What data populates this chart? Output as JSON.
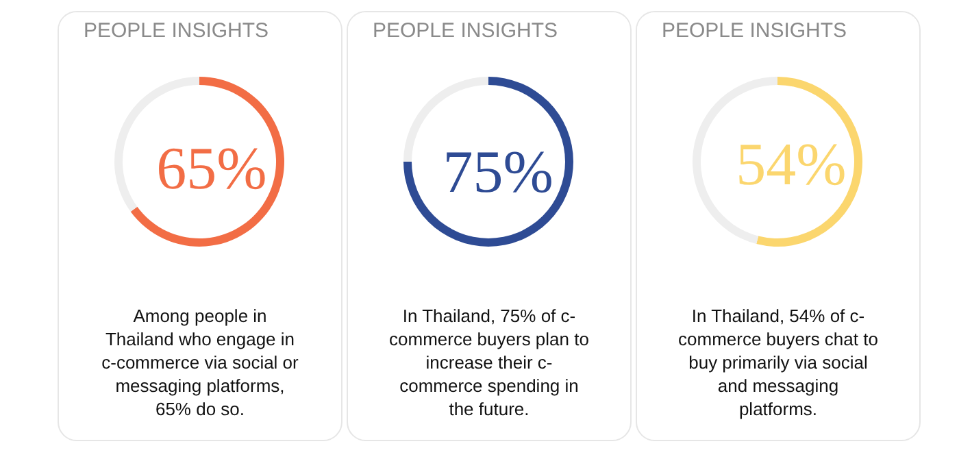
{
  "chart_data": [
    {
      "type": "donut",
      "title": "PEOPLE INSIGHTS",
      "categories": [
        null,
        null
      ],
      "values": [
        65,
        35
      ],
      "colors": [
        "#f26d45",
        "#eeeeee"
      ],
      "value_labels": [
        "65%",
        null
      ],
      "annotations": [
        "Among people in Thailand who engage in c-commerce via social or messaging platforms, 65% do so."
      ]
    },
    {
      "type": "donut",
      "title": "PEOPLE INSIGHTS",
      "categories": [
        null,
        null
      ],
      "values": [
        75,
        25
      ],
      "colors": [
        "#2e4b94",
        "#eeeeee"
      ],
      "value_labels": [
        "75%",
        null
      ],
      "annotations": [
        "In Thailand, 75% of c-commerce buyers plan to increase their c-commerce spending in the future."
      ]
    },
    {
      "type": "donut",
      "title": "PEOPLE INSIGHTS",
      "categories": [
        null,
        null
      ],
      "values": [
        54,
        46
      ],
      "colors": [
        "#fbd66e",
        "#eeeeee"
      ],
      "value_labels": [
        "54%",
        null
      ],
      "annotations": [
        "In Thailand, 54% of c-commerce buyers chat to buy primarily via social and messaging platforms."
      ]
    }
  ]
}
